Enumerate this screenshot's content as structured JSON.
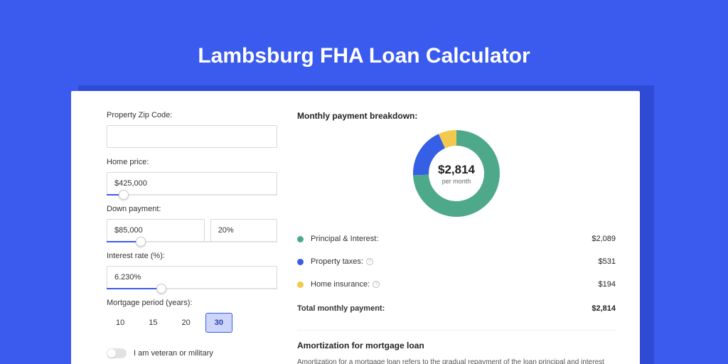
{
  "colors": {
    "page_bg": "#3b5bef",
    "card_bg": "#ffffff",
    "shadow_bg": "#2f4bd6",
    "title_color": "#ffffff",
    "text": "#333333",
    "border": "#d8d8d8",
    "slider_fill": "#3b5bef",
    "period_active_bg": "#cdd6f9",
    "period_active_border": "#3b5bef"
  },
  "title": "Lambsburg FHA Loan Calculator",
  "form": {
    "zip_label": "Property Zip Code:",
    "zip_value": "",
    "home_price_label": "Home price:",
    "home_price_value": "$425,000",
    "home_price_slider_pct": 10,
    "down_label": "Down payment:",
    "down_value": "$85,000",
    "down_pct_value": "20%",
    "down_slider_pct": 20,
    "rate_label": "Interest rate (%):",
    "rate_value": "6.230%",
    "rate_slider_pct": 32,
    "period_label": "Mortgage period (years):",
    "periods": [
      "10",
      "15",
      "20",
      "30"
    ],
    "period_active_index": 3,
    "veteran_label": "I am veteran or military"
  },
  "breakdown": {
    "title": "Monthly payment breakdown:",
    "donut": {
      "center_value": "$2,814",
      "center_sub": "per month",
      "radius": 50,
      "stroke_width": 22,
      "segments": [
        {
          "name": "principal_interest",
          "color": "#4ea98b",
          "fraction": 0.742
        },
        {
          "name": "property_taxes",
          "color": "#355fe5",
          "fraction": 0.189
        },
        {
          "name": "home_insurance",
          "color": "#f2c94c",
          "fraction": 0.069
        }
      ]
    },
    "rows": [
      {
        "label": "Principal & Interest:",
        "value": "$2,089",
        "color": "#4ea98b",
        "info": false
      },
      {
        "label": "Property taxes:",
        "value": "$531",
        "color": "#355fe5",
        "info": true
      },
      {
        "label": "Home insurance:",
        "value": "$194",
        "color": "#f2c94c",
        "info": true
      }
    ],
    "total_label": "Total monthly payment:",
    "total_value": "$2,814"
  },
  "amortization": {
    "title": "Amortization for mortgage loan",
    "text": "Amortization for a mortgage loan refers to the gradual repayment of the loan principal and interest over a specified"
  }
}
